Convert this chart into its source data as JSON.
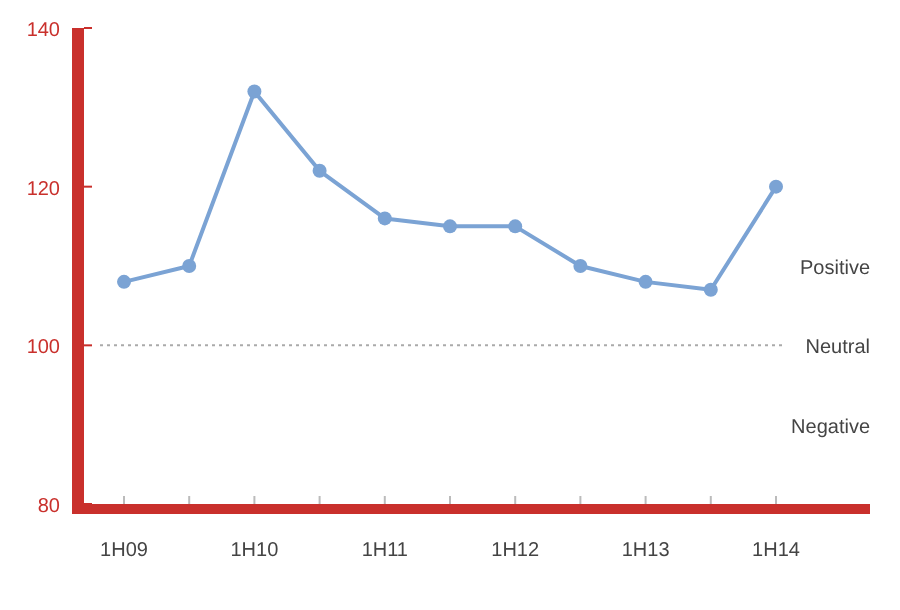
{
  "chart_data": {
    "type": "line",
    "categories": [
      "1H09",
      null,
      "1H10",
      null,
      "1H11",
      null,
      "1H12",
      null,
      "1H13",
      null,
      "1H14"
    ],
    "series": [
      {
        "color": "#7ba3d4",
        "values": [
          108,
          110,
          132,
          122,
          116,
          115,
          115,
          110,
          108,
          107,
          120
        ]
      }
    ],
    "ylim": [
      80,
      140
    ],
    "yticks": [
      80,
      100,
      120,
      140
    ],
    "marker": "circle",
    "line_style": "solid",
    "grid": false,
    "ref_lines": [
      {
        "axis": "y",
        "value": 100,
        "label": "Neutral",
        "color": "#aaaaaa",
        "line_style": "dotted"
      }
    ],
    "annotations": [
      "Positive",
      "Negative"
    ]
  }
}
